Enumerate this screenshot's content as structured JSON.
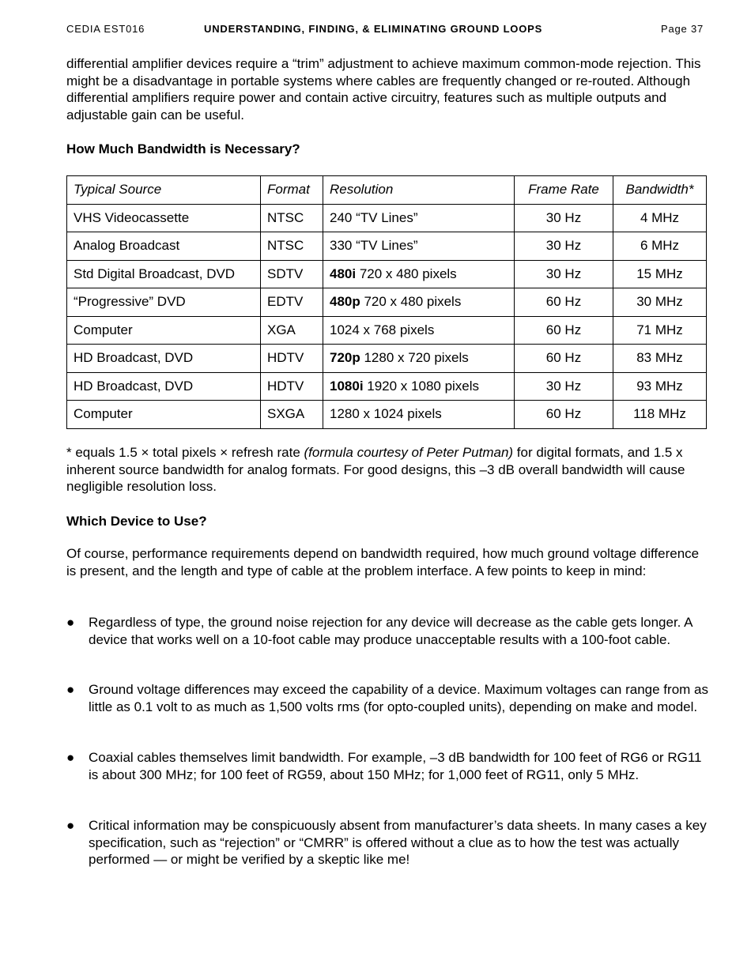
{
  "header": {
    "left": "CEDIA EST016",
    "center": "UNDERSTANDING, FINDING, & ELIMINATING GROUND LOOPS",
    "right": "Page 37"
  },
  "intro_paragraph": "differential amplifier devices require a “trim” adjustment to achieve maximum common-mode rejection. This might be a disadvantage in portable systems where cables are frequently changed or re-routed. Although differential amplifiers require power and contain active circuitry, features such as multiple outputs and adjustable gain can be useful.",
  "bandwidth_heading": "How Much Bandwidth is Necessary?",
  "table": {
    "headers": [
      "Typical Source",
      "Format",
      "Resolution",
      "Frame Rate",
      "Bandwidth*"
    ],
    "rows": [
      {
        "source": "VHS Videocassette",
        "format": "NTSC",
        "res_bold": "",
        "res": "240 “TV Lines”",
        "rate": "30 Hz",
        "bw": "4 MHz"
      },
      {
        "source": "Analog Broadcast",
        "format": "NTSC",
        "res_bold": "",
        "res": "330 “TV Lines”",
        "rate": "30 Hz",
        "bw": "6 MHz"
      },
      {
        "source": "Std Digital Broadcast, DVD",
        "format": "SDTV",
        "res_bold": "480i",
        "res": " 720 x 480 pixels",
        "rate": "30 Hz",
        "bw": "15 MHz"
      },
      {
        "source": "“Progressive” DVD",
        "format": "EDTV",
        "res_bold": "480p",
        "res": " 720 x 480 pixels",
        "rate": "60 Hz",
        "bw": "30 MHz"
      },
      {
        "source": "Computer",
        "format": "XGA",
        "res_bold": "",
        "res": "1024 x 768 pixels",
        "rate": "60 Hz",
        "bw": "71 MHz"
      },
      {
        "source": "HD Broadcast, DVD",
        "format": "HDTV",
        "res_bold": "720p",
        "res": " 1280 x 720 pixels",
        "rate": "60 Hz",
        "bw": "83 MHz"
      },
      {
        "source": "HD Broadcast, DVD",
        "format": "HDTV",
        "res_bold": "1080i",
        "res": " 1920 x 1080 pixels",
        "rate": "30 Hz",
        "bw": "93 MHz"
      },
      {
        "source": "Computer",
        "format": "SXGA",
        "res_bold": "",
        "res": "1280 x 1024 pixels",
        "rate": "60 Hz",
        "bw": "118 MHz"
      }
    ]
  },
  "footnote": {
    "part1": "* equals 1.5 × total pixels × refresh rate ",
    "italic": "(formula courtesy of Peter Putman)",
    "part2": " for digital formats, and 1.5 x inherent source bandwidth for analog formats. For good designs, this –3 dB overall bandwidth will cause negligible resolution loss."
  },
  "device_heading": "Which Device to Use?",
  "device_paragraph": "Of course, performance requirements depend on bandwidth required, how much ground voltage difference is present, and the length and type of cable at the problem interface. A few points to keep in mind:",
  "bullets": [
    "Regardless of type, the ground noise rejection for any device will decrease as the cable gets longer. A device that works well on a 10-foot cable may produce unacceptable results with a 100-foot cable.",
    "Ground voltage differences may exceed the capability of a device. Maximum voltages can range from as little as 0.1 volt to as much as 1,500 volts rms (for opto-coupled units), depending on make and model.",
    "Coaxial cables themselves limit bandwidth. For example, –3 dB bandwidth for 100 feet of RG6 or RG11 is about 300 MHz; for 100 feet of RG59, about 150 MHz; for 1,000 feet of RG11, only 5 MHz.",
    "Critical information may be conspicuously absent from manufacturer’s data sheets. In many cases a key specification, such as “rejection” or “CMRR” is offered without a clue as to how the test was actually performed — or might be verified by a skeptic like me!"
  ],
  "bullet_glyph": "●"
}
